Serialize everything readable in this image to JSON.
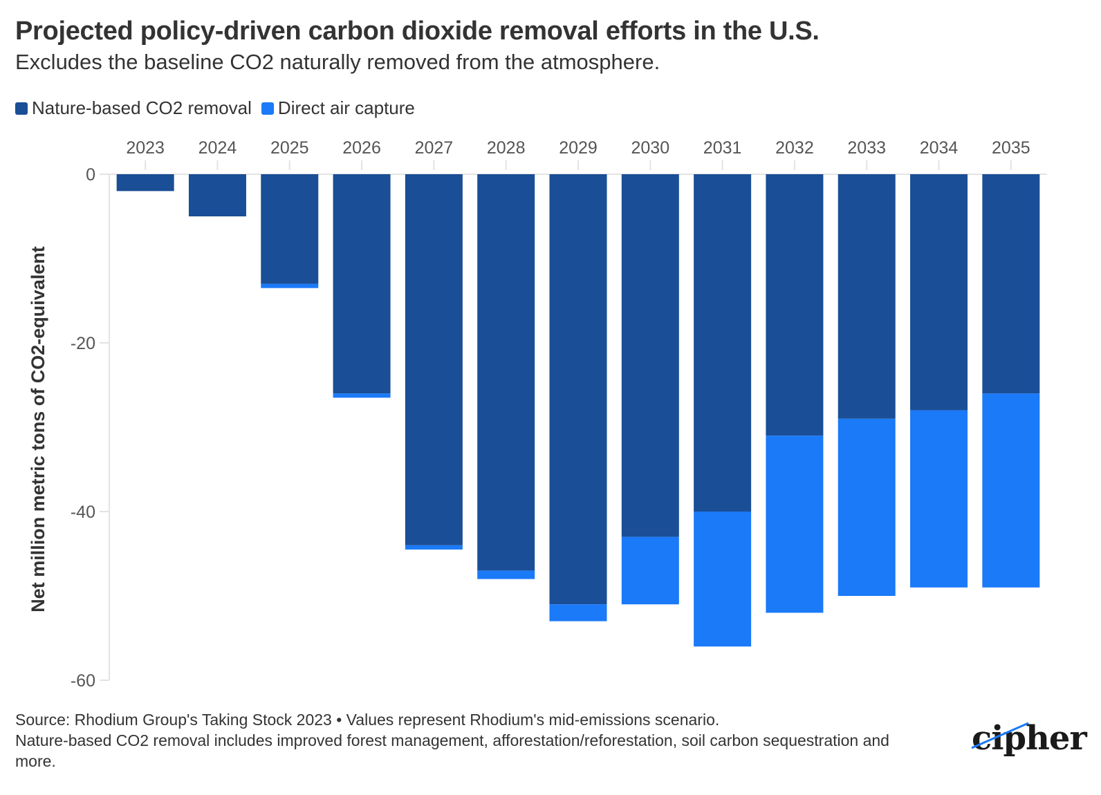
{
  "header": {
    "title": "Projected policy-driven carbon dioxide removal efforts in the U.S.",
    "subtitle": "Excludes the baseline CO2 naturally removed from the atmosphere."
  },
  "legend": [
    {
      "label": "Nature-based CO2 removal",
      "color": "#1a4e96"
    },
    {
      "label": "Direct air capture",
      "color": "#1a7af8"
    }
  ],
  "chart_data": {
    "type": "bar",
    "stacked": true,
    "categories": [
      "2023",
      "2024",
      "2025",
      "2026",
      "2027",
      "2028",
      "2029",
      "2030",
      "2031",
      "2032",
      "2033",
      "2034",
      "2035"
    ],
    "series": [
      {
        "name": "Nature-based CO2 removal",
        "color": "#1a4e96",
        "values": [
          -2,
          -5,
          -13,
          -26,
          -44,
          -47,
          -51,
          -43,
          -40,
          -31,
          -29,
          -28,
          -26
        ]
      },
      {
        "name": "Direct air capture",
        "color": "#1a7af8",
        "values": [
          0,
          0,
          -0.5,
          -0.5,
          -0.5,
          -1,
          -2,
          -8,
          -16,
          -21,
          -21,
          -21,
          -23
        ]
      }
    ],
    "ylabel": "Net million metric tons of CO2-equivalent",
    "ylim": [
      -60,
      0
    ],
    "yticks": [
      0,
      -20,
      -40,
      -60
    ],
    "ytick_labels": [
      "0",
      "-20",
      "-40",
      "-60"
    ],
    "x_axis_position": "top",
    "grid": false
  },
  "footer": {
    "line1": "Source: Rhodium Group's Taking Stock 2023 • Values represent Rhodium's mid-emissions scenario.",
    "line2": "Nature-based CO2 removal includes improved forest management, afforestation/reforestation, soil carbon sequestration and more."
  },
  "logo": {
    "text": "cipher"
  }
}
